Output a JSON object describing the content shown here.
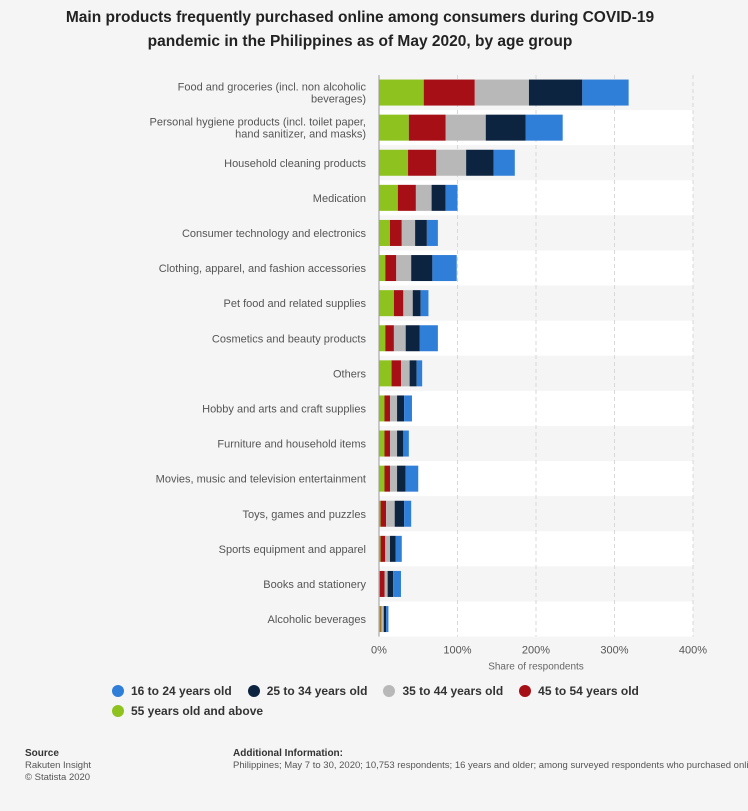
{
  "header": {
    "title_line1": "Main products frequently purchased online among consumers during COVID-19",
    "title_line2": "pandemic in the Philippines as of May 2020, by age group"
  },
  "chart_data": {
    "type": "bar",
    "orientation": "horizontal",
    "stacked": true,
    "title": "Main products frequently purchased online among consumers during COVID-19 pandemic in the Philippines as of May 2020, by age group",
    "xlabel": "Share of respondents",
    "ylabel": "",
    "xlim": [
      0,
      400
    ],
    "xticks": [
      0,
      100,
      200,
      300,
      400
    ],
    "xtick_labels": [
      "0%",
      "100%",
      "200%",
      "300%",
      "400%"
    ],
    "grid": true,
    "legend_position": "bottom",
    "categories": [
      [
        "Food and groceries (incl. non alcoholic",
        "beverages)"
      ],
      [
        "Personal hygiene products (incl. toilet paper,",
        "hand sanitizer, and masks)"
      ],
      [
        "Household cleaning products"
      ],
      [
        "Medication"
      ],
      [
        "Consumer technology and electronics"
      ],
      [
        "Clothing, apparel, and fashion accessories"
      ],
      [
        "Pet food and related supplies"
      ],
      [
        "Cosmetics and beauty products"
      ],
      [
        "Others"
      ],
      [
        "Hobby and arts and craft supplies"
      ],
      [
        "Furniture and household items"
      ],
      [
        "Movies, music and television entertainment"
      ],
      [
        "Toys, games and puzzles"
      ],
      [
        "Sports equipment and apparel"
      ],
      [
        "Books and stationery"
      ],
      [
        "Alcoholic beverages"
      ]
    ],
    "series": [
      {
        "name": "55 years old and above",
        "color": "#8dc21f",
        "values": [
          57,
          38,
          37,
          24,
          14,
          8,
          19,
          8,
          16,
          7,
          7,
          7,
          2,
          2,
          1,
          2
        ]
      },
      {
        "name": "45 to 54 years old",
        "color": "#a50f15",
        "values": [
          65,
          47,
          36,
          23,
          15,
          14,
          12,
          11,
          12,
          7,
          7,
          7,
          7,
          6,
          6,
          1
        ]
      },
      {
        "name": "35 to 44 years old",
        "color": "#b8b8b8",
        "values": [
          69,
          51,
          38,
          20,
          17,
          19,
          12,
          15,
          11,
          9,
          9,
          9,
          11,
          6,
          4,
          3
        ]
      },
      {
        "name": "25 to 34 years old",
        "color": "#0d2440",
        "values": [
          68,
          51,
          35,
          18,
          15,
          27,
          10,
          18,
          9,
          9,
          8,
          11,
          12,
          7,
          7,
          3
        ]
      },
      {
        "name": "16 to 24 years old",
        "color": "#2f7ed8",
        "values": [
          59,
          47,
          27,
          15,
          14,
          31,
          10,
          23,
          7,
          10,
          7,
          16,
          9,
          8,
          10,
          3
        ]
      }
    ]
  },
  "legend": {
    "items": [
      {
        "label": "16 to 24 years old",
        "color": "#2f7ed8"
      },
      {
        "label": "25 to 34 years old",
        "color": "#0d2440"
      },
      {
        "label": "35 to 44 years old",
        "color": "#b8b8b8"
      },
      {
        "label": "45 to 54 years old",
        "color": "#a50f15"
      },
      {
        "label": "55 years old and above",
        "color": "#8dc21f"
      }
    ]
  },
  "footer": {
    "source_head": "Source",
    "source_line1": "Rakuten Insight",
    "source_line2": "© Statista 2020",
    "info_head": "Additional Information:",
    "info_text": "Philippines; May 7 to 30, 2020; 10,753 respondents; 16 years and older; among surveyed respondents who purchased onli"
  }
}
